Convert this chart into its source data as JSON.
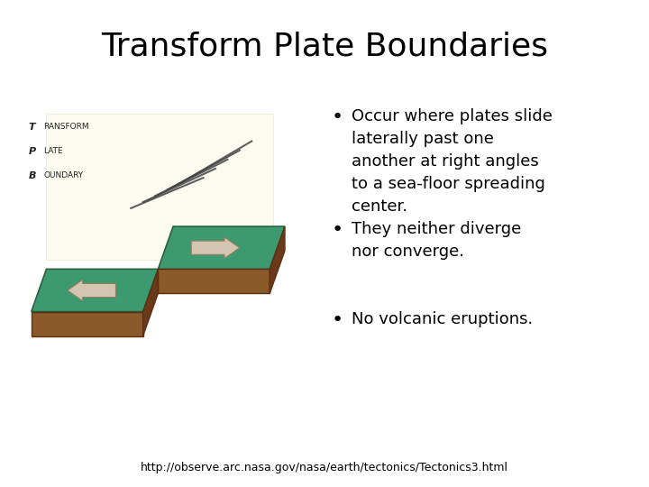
{
  "title": "Transform Plate Boundaries",
  "title_fontsize": 26,
  "title_fontfamily": "DejaVu Sans",
  "bullet_points": [
    "Occur where plates slide\nlaterally past one\nanother at right angles\nto a sea-floor spreading\ncenter.",
    "They neither diverge\nnor converge.",
    "No volcanic eruptions."
  ],
  "bullet_fontsize": 13,
  "footer": "http://observe.arc.nasa.gov/nasa/earth/tectonics/Tectonics3.html",
  "footer_fontsize": 9,
  "background_color": "#ffffff",
  "text_color": "#000000",
  "image_bg_color": "#ffffd0",
  "plate_green": "#3d9970",
  "plate_brown": "#8b5a2b",
  "plate_brown_dark": "#6b3a1b",
  "arrow_color": "#d4c4b0",
  "arrow_edge": "#a09070",
  "fault_color": "#444444",
  "label_color": "#222222"
}
